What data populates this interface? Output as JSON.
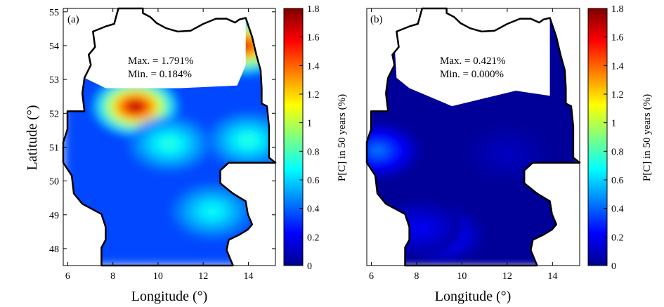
{
  "chart_data": [
    {
      "type": "heatmap",
      "panel_label": "(a)",
      "xlabel": "Longitude (°)",
      "ylabel": "Latitude (°)",
      "xlim": [
        5.8,
        15.2
      ],
      "ylim": [
        47.5,
        55.1
      ],
      "x_ticks": [
        "6",
        "8",
        "10",
        "12",
        "14"
      ],
      "y_ticks": [
        "48",
        "49",
        "50",
        "51",
        "52",
        "53",
        "54",
        "55"
      ],
      "annotation": {
        "max": "Max. = 1.791%",
        "min": "Min. = 0.184%"
      },
      "colorbar": {
        "label": "P[C] in 50 years (%)",
        "range": [
          0,
          1.8
        ],
        "ticks": [
          "0",
          "0.2",
          "0.4",
          "0.6",
          "0.8",
          "1",
          "1.2",
          "1.4",
          "1.6",
          "1.8"
        ]
      },
      "hotspots": [
        {
          "lon": 9.0,
          "lat": 52.2,
          "value": 1.79
        },
        {
          "lon": 13.8,
          "lat": 54.0,
          "value": 1.65
        },
        {
          "lon": 10.5,
          "lat": 51.1,
          "value": 0.75
        },
        {
          "lon": 14.0,
          "lat": 51.2,
          "value": 0.75
        },
        {
          "lon": 12.4,
          "lat": 49.1,
          "value": 0.7
        }
      ],
      "background_value": 0.35
    },
    {
      "type": "heatmap",
      "panel_label": "(b)",
      "xlabel": "Longitude (°)",
      "ylabel": "",
      "xlim": [
        5.8,
        15.2
      ],
      "ylim": [
        47.5,
        55.1
      ],
      "x_ticks": [
        "6",
        "8",
        "10",
        "12",
        "14"
      ],
      "annotation": {
        "max": "Max. = 0.421%",
        "min": "Min. = 0.000%"
      },
      "colorbar": {
        "label": "P[C] in 50 years (%)",
        "range": [
          0,
          1.8
        ],
        "ticks": [
          "0",
          "0.2",
          "0.4",
          "0.6",
          "0.8",
          "1",
          "1.2",
          "1.4",
          "1.6",
          "1.8"
        ]
      },
      "hotspots": [
        {
          "lon": 6.3,
          "lat": 50.9,
          "value": 0.42
        },
        {
          "lon": 9.1,
          "lat": 48.4,
          "value": 0.3
        },
        {
          "lon": 8.2,
          "lat": 48.6,
          "value": 0.2
        },
        {
          "lon": 12.0,
          "lat": 50.8,
          "value": 0.1
        }
      ],
      "background_value": 0.02
    }
  ],
  "colormap": [
    "#00008f",
    "#0000ff",
    "#0080ff",
    "#00ffff",
    "#80ff80",
    "#ffff00",
    "#ff8000",
    "#ff0000",
    "#800000"
  ]
}
